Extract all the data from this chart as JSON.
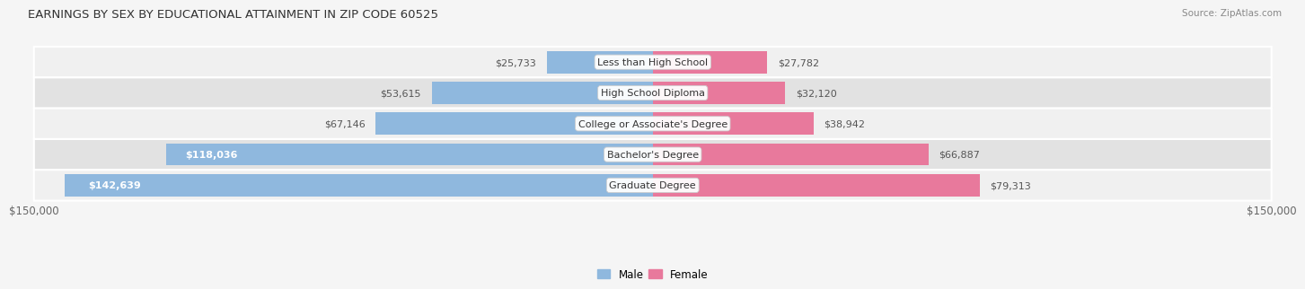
{
  "title": "EARNINGS BY SEX BY EDUCATIONAL ATTAINMENT IN ZIP CODE 60525",
  "source": "Source: ZipAtlas.com",
  "categories": [
    "Less than High School",
    "High School Diploma",
    "College or Associate's Degree",
    "Bachelor's Degree",
    "Graduate Degree"
  ],
  "male_values": [
    25733,
    53615,
    67146,
    118036,
    142639
  ],
  "female_values": [
    27782,
    32120,
    38942,
    66887,
    79313
  ],
  "male_color": "#8fb8de",
  "female_color": "#e8799c",
  "max_val": 150000,
  "bar_height": 0.72,
  "row_color_even": "#f0f0f0",
  "row_color_odd": "#e2e2e2",
  "label_fontsize": 8.0,
  "title_fontsize": 9.5,
  "source_fontsize": 7.5,
  "axis_label": "$150,000",
  "value_inside_threshold": 90000
}
